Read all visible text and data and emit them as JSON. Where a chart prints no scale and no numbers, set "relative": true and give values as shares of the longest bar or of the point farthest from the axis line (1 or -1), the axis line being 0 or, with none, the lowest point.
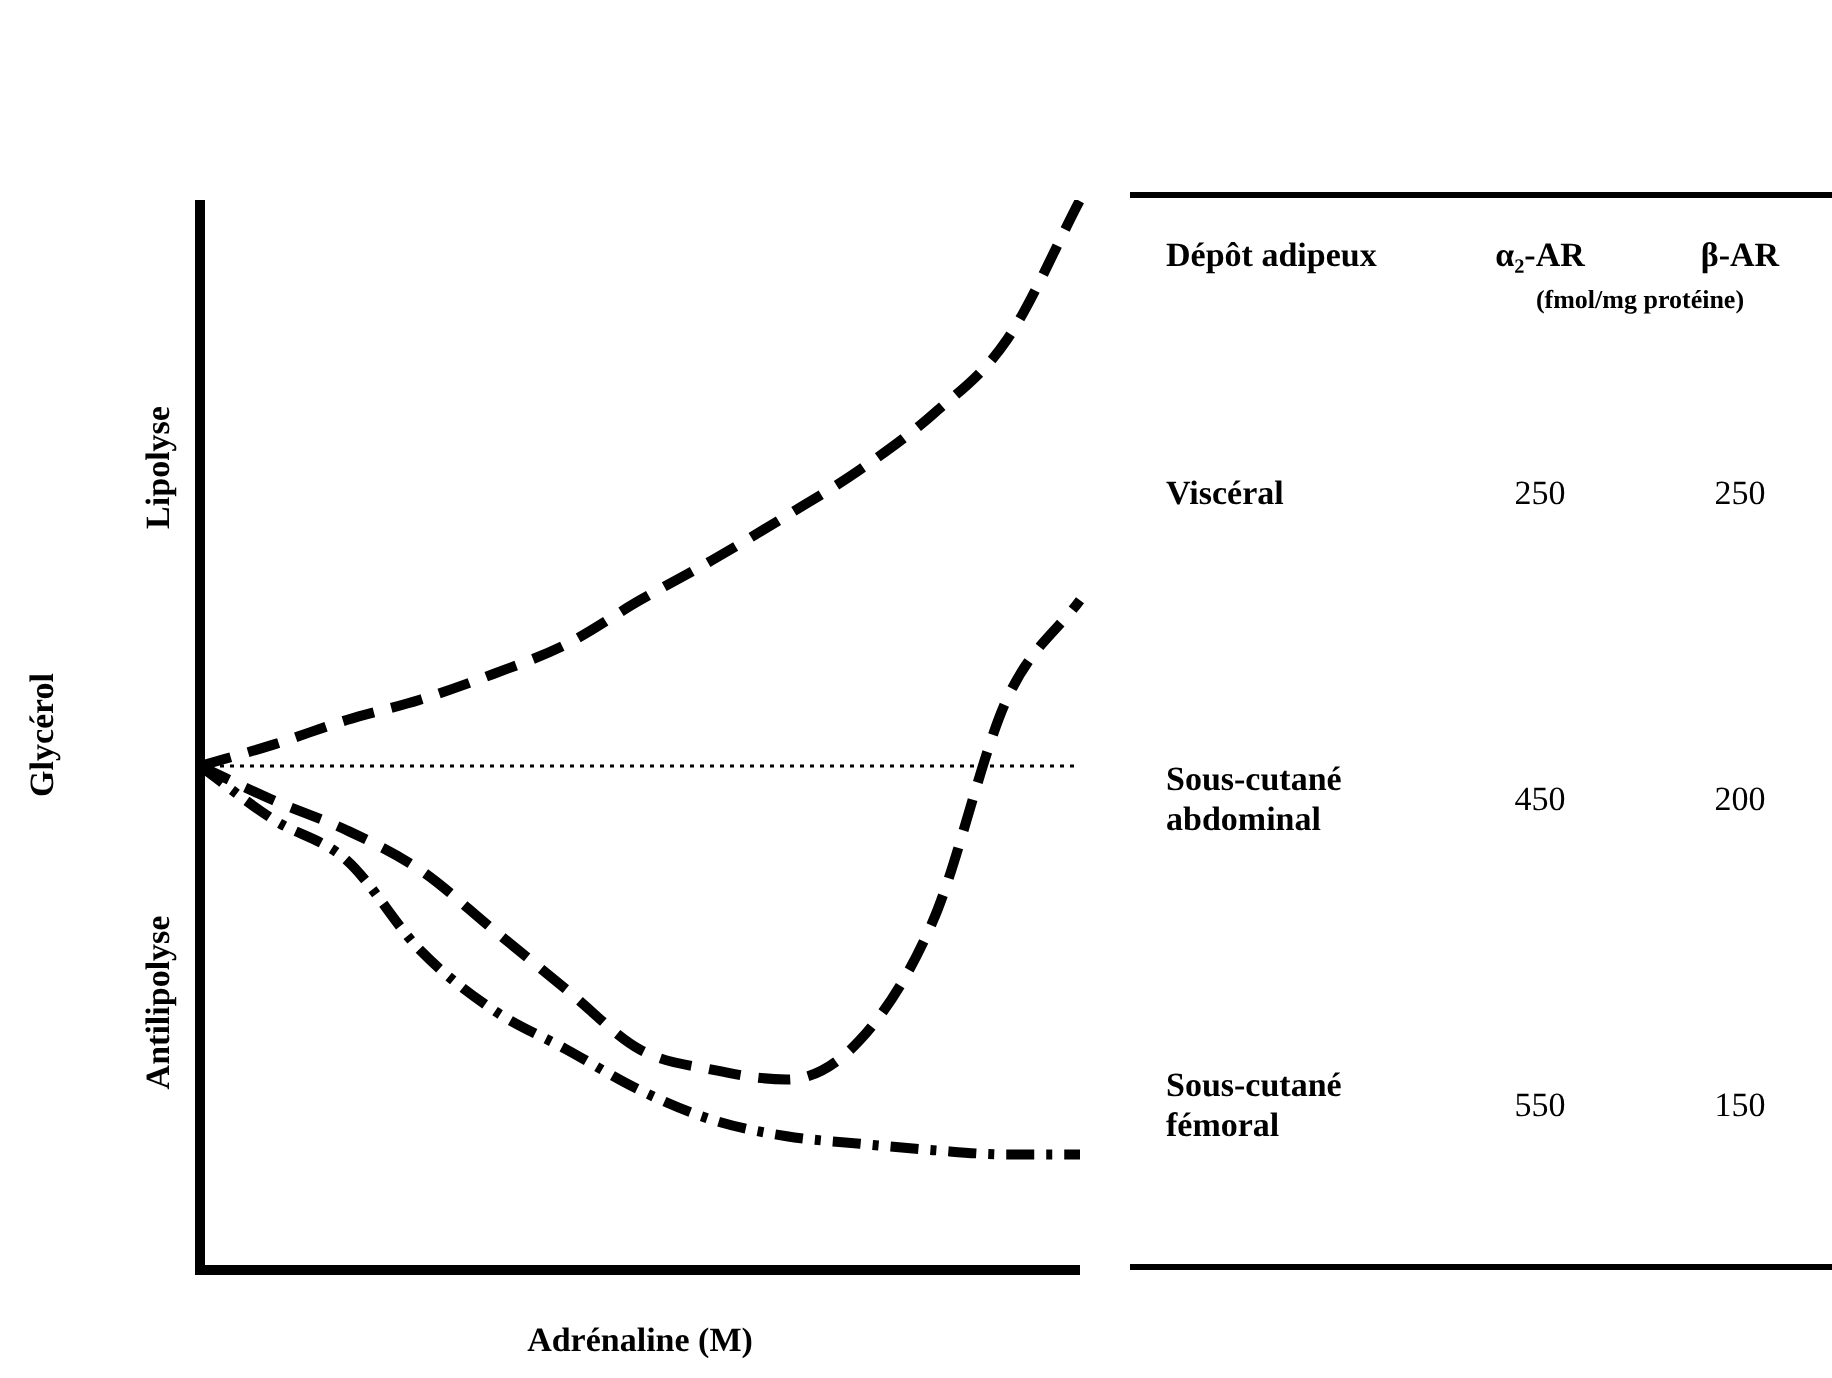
{
  "chart_data": [
    {
      "type": "line",
      "xlabel": "Adrénaline (M)",
      "ylabel": "Glycérol",
      "relative": true,
      "legend": false,
      "categories": [
        null,
        null,
        null,
        null,
        null,
        null,
        null,
        null,
        null,
        null,
        null,
        null,
        null
      ],
      "series": [
        {
          "color": "#000000",
          "line_style": "dashed",
          "values": [
            0.471,
            0.491,
            0.514,
            0.533,
            0.557,
            0.585,
            0.626,
            0.664,
            0.705,
            0.748,
            0.8,
            0.869,
            1
          ]
        },
        {
          "color": "#000000",
          "line_style": "dashed",
          "values": [
            0.471,
            0.439,
            0.411,
            0.374,
            0.318,
            0.262,
            0.206,
            0.187,
            0.178,
            0.215,
            0.327,
            0.533,
            0.626
          ]
        },
        {
          "color": "#000000",
          "line_style": "dashdot",
          "values": [
            0.471,
            0.421,
            0.383,
            0.299,
            0.243,
            0.206,
            0.168,
            0.14,
            0.125,
            0.118,
            0.112,
            0.108,
            0.108
          ]
        }
      ],
      "ref_lines": [
        {
          "axis": "y",
          "value": 0.471,
          "line_style": "dotted",
          "color": "#000000"
        }
      ],
      "annotations": [
        "Lipolyse",
        "Antilipolyse"
      ]
    },
    {
      "type": "other",
      "categories": [
        "Dépôt adipeux",
        "α₂-AR",
        "β-AR"
      ],
      "subtitle": "(fmol/mg protéine)",
      "y_categories": [
        "Viscéral",
        "Sous-cutané abdominal",
        "Sous-cutané fémoral"
      ],
      "cell_labels": [
        [
          "250",
          "250"
        ],
        [
          "450",
          "200"
        ],
        [
          "550",
          "150"
        ]
      ]
    }
  ]
}
